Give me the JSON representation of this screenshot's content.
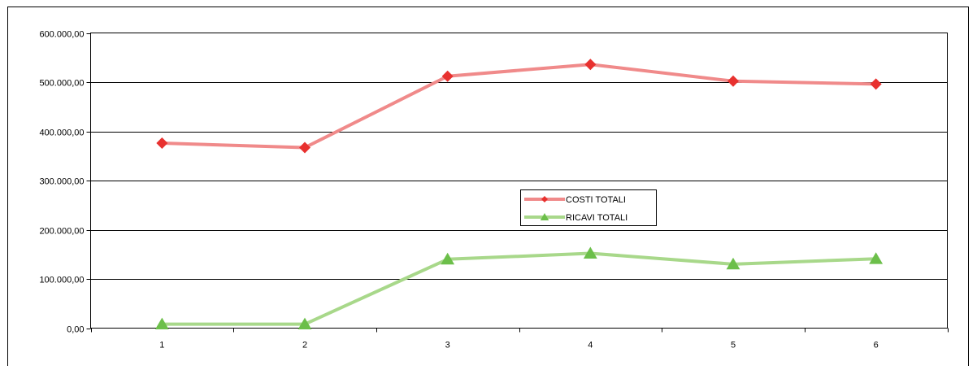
{
  "chart_data": {
    "type": "line",
    "categories": [
      "1",
      "2",
      "3",
      "4",
      "5",
      "6"
    ],
    "series": [
      {
        "name": "COSTI TOTALI",
        "values": [
          376000,
          367000,
          512000,
          536000,
          502000,
          496000
        ],
        "color": "#e8312f",
        "line_color": "#f08a8a",
        "marker": "diamond"
      },
      {
        "name": "RICAVI TOTALI",
        "values": [
          8000,
          8000,
          140000,
          152000,
          130000,
          141000
        ],
        "color": "#6cbf4a",
        "line_color": "#a8d88a",
        "marker": "triangle"
      }
    ],
    "yticks": [
      "0,00",
      "100.000,00",
      "200.000,00",
      "300.000,00",
      "400.000,00",
      "500.000,00",
      "600.000,00"
    ],
    "ylim": [
      0,
      600000
    ],
    "grid": true,
    "legend_position": "center"
  }
}
